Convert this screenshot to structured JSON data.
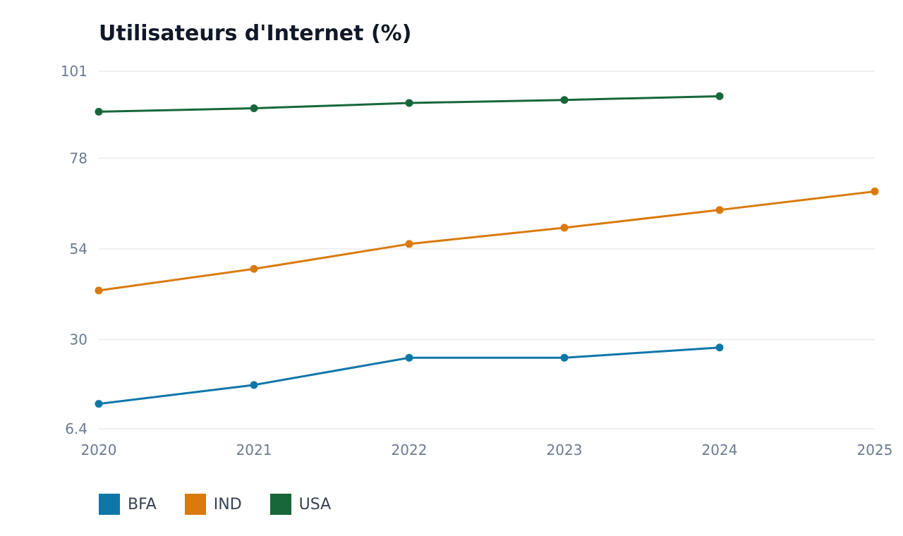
{
  "chart_data": {
    "type": "line",
    "title": "Utilisateurs d'Internet (%)",
    "xlabel": "",
    "ylabel": "",
    "x": [
      "2020",
      "2021",
      "2022",
      "2023",
      "2024",
      "2025"
    ],
    "y_ticks": [
      "101",
      "78",
      "54",
      "30",
      "6.4"
    ],
    "ylim": [
      6.4,
      101
    ],
    "grid": true,
    "legend_position": "bottom-left",
    "series": [
      {
        "name": "BFA",
        "color": "#0f76a8",
        "values": [
          13,
          18,
          25.2,
          25.2,
          27.9,
          null
        ]
      },
      {
        "name": "IND",
        "color": "#d97a0b",
        "values": [
          43,
          48.7,
          55.3,
          59.6,
          64.3,
          69.2
        ]
      },
      {
        "name": "USA",
        "color": "#17673a",
        "values": [
          90.3,
          91.2,
          92.6,
          93.4,
          94.4,
          null
        ]
      }
    ]
  }
}
